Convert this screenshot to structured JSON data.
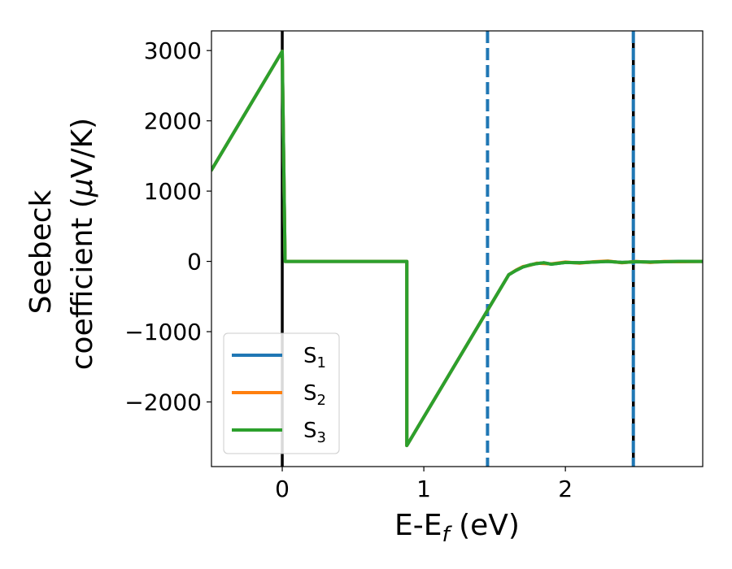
{
  "chart_data": {
    "type": "line",
    "title": "",
    "xlabel": {
      "main": "E-E",
      "sub": "f",
      "tail": " (eV)"
    },
    "ylabel": {
      "line1": "Seebeck",
      "line2_pre": "coefficient  (",
      "mu": "μ",
      "line2_post": "V/K)"
    },
    "xlim": [
      -0.5,
      2.97
    ],
    "ylim": [
      -2920,
      3280
    ],
    "xticks": [
      {
        "value": 0,
        "label": "0"
      },
      {
        "value": 1,
        "label": "1"
      },
      {
        "value": 2,
        "label": "2"
      }
    ],
    "yticks": [
      {
        "value": -2000,
        "label": "−2000"
      },
      {
        "value": -1000,
        "label": "−1000"
      },
      {
        "value": 0,
        "label": "0"
      },
      {
        "value": 1000,
        "label": "1000"
      },
      {
        "value": 2000,
        "label": "2000"
      },
      {
        "value": 3000,
        "label": "3000"
      }
    ],
    "grid": false,
    "legend_position": "bottom-left",
    "series": [
      {
        "name": "S",
        "sub": "1",
        "color": "#1f77b4",
        "x": [
          -0.5,
          0.0,
          0.02,
          0.88,
          0.88,
          1.6,
          1.65,
          1.7,
          1.75,
          1.8,
          1.85,
          1.9,
          2.0,
          2.1,
          2.2,
          2.3,
          2.4,
          2.5,
          2.6,
          2.7,
          2.8,
          2.97
        ],
        "y": [
          1300,
          2990,
          0,
          0,
          -2620,
          -190,
          -130,
          -80,
          -50,
          -30,
          -20,
          -40,
          -15,
          -20,
          -10,
          0,
          -15,
          -5,
          -10,
          -5,
          0,
          0
        ]
      },
      {
        "name": "S",
        "sub": "2",
        "color": "#ff7f0e",
        "x": [
          -0.5,
          0.0,
          0.02,
          0.88,
          0.88,
          1.6,
          1.65,
          1.7,
          1.75,
          1.8,
          1.85,
          1.9,
          2.0,
          2.1,
          2.2,
          2.3,
          2.4,
          2.5,
          2.6,
          2.7,
          2.8,
          2.97
        ],
        "y": [
          1300,
          2990,
          0,
          0,
          -2620,
          -190,
          -125,
          -75,
          -55,
          -25,
          -30,
          -35,
          -10,
          -25,
          -5,
          5,
          -20,
          0,
          -15,
          0,
          -5,
          0
        ]
      },
      {
        "name": "S",
        "sub": "3",
        "color": "#2ca02c",
        "x": [
          -0.5,
          0.0,
          0.02,
          0.88,
          0.88,
          1.6,
          1.65,
          1.7,
          1.75,
          1.8,
          1.85,
          1.9,
          2.0,
          2.1,
          2.2,
          2.3,
          2.4,
          2.5,
          2.6,
          2.7,
          2.8,
          2.97
        ],
        "y": [
          1300,
          2990,
          0,
          0,
          -2620,
          -190,
          -130,
          -80,
          -50,
          -30,
          -20,
          -40,
          -15,
          -20,
          -10,
          0,
          -15,
          -5,
          -10,
          -5,
          0,
          0
        ]
      }
    ],
    "vlines": [
      {
        "x": 0.0,
        "color": "#000000",
        "style": "solid"
      },
      {
        "x": 2.48,
        "color": "#000000",
        "style": "solid"
      },
      {
        "x": 1.45,
        "color": "#1f77b4",
        "style": "dashed"
      },
      {
        "x": 2.48,
        "color": "#1f77b4",
        "style": "dashed"
      }
    ]
  }
}
